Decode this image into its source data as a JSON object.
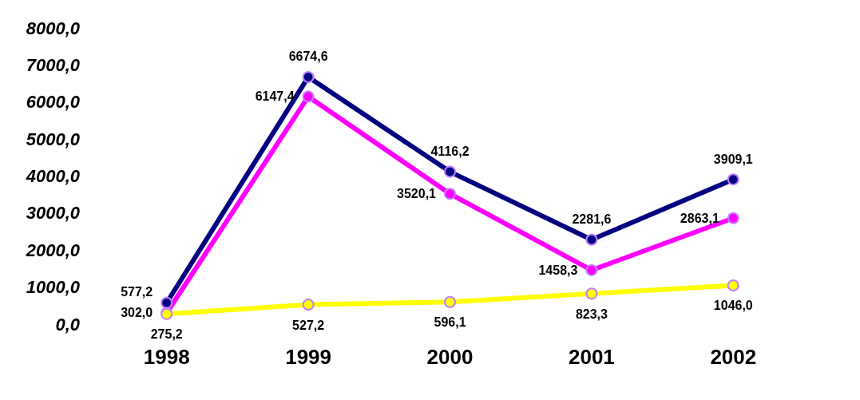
{
  "chart_data": {
    "type": "line",
    "categories": [
      "1998",
      "1999",
      "2000",
      "2001",
      "2002"
    ],
    "series": [
      {
        "color": "#000080",
        "values": [
          577.2,
          6674.6,
          4116.2,
          2281.6,
          3909.1
        ],
        "value_labels": [
          "577,2",
          "6674,6",
          "4116,2",
          "2281,6",
          "3909,1"
        ]
      },
      {
        "color": "#ff00ff",
        "values": [
          302.0,
          6147.4,
          3520.1,
          1458.3,
          2863.1
        ],
        "value_labels": [
          "302,0",
          "6147,4",
          "3520,1",
          "1458,3",
          "2863,1"
        ]
      },
      {
        "color": "#ffff00",
        "values": [
          275.2,
          527.2,
          596.1,
          823.3,
          1046.0
        ],
        "value_labels": [
          "275,2",
          "527,2",
          "596,1",
          "823,3",
          "1046,0"
        ]
      }
    ],
    "ylim": [
      0,
      8000
    ],
    "yticks": [
      {
        "value": 0,
        "label": "0,0"
      },
      {
        "value": 1000,
        "label": "1000,0"
      },
      {
        "value": 2000,
        "label": "2000,0"
      },
      {
        "value": 3000,
        "label": "3000,0"
      },
      {
        "value": 4000,
        "label": "4000,0"
      },
      {
        "value": 5000,
        "label": "5000,0"
      },
      {
        "value": 6000,
        "label": "6000,0"
      },
      {
        "value": 7000,
        "label": "7000,0"
      },
      {
        "value": 8000,
        "label": "8000,0"
      }
    ],
    "grid": false,
    "marker": "circle",
    "line_style": "solid"
  }
}
